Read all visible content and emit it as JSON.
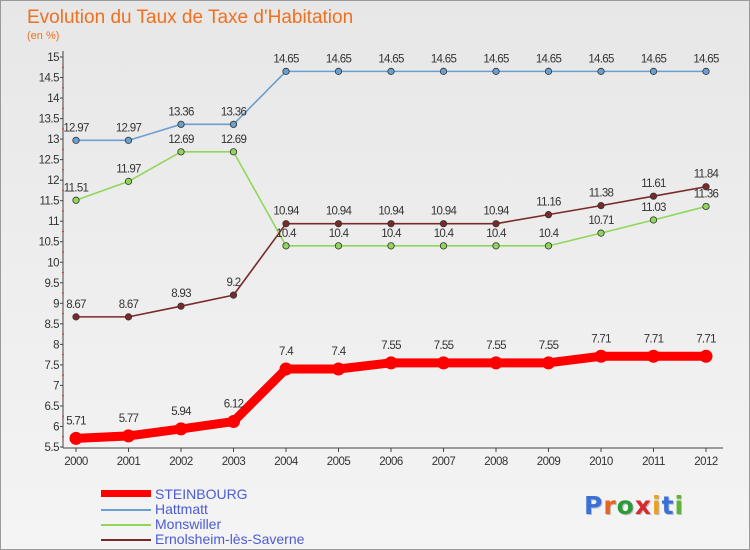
{
  "header": {
    "title": "Evolution du Taux de Taxe d'Habitation",
    "subtitle": "(en %)"
  },
  "chart_data": {
    "type": "line",
    "title": "Evolution du Taux de Taxe d'Habitation",
    "ylabel": "(en %)",
    "xlabel": "",
    "x": [
      2000,
      2001,
      2002,
      2003,
      2004,
      2005,
      2006,
      2007,
      2008,
      2009,
      2010,
      2011,
      2012
    ],
    "ylim": [
      5.5,
      15
    ],
    "ytick_step": 0.5,
    "grid": false,
    "legend_position": "bottom-left",
    "series": [
      {
        "name": "STEINBOURG",
        "color": "#ff0000",
        "values": [
          5.71,
          5.77,
          5.94,
          6.12,
          7.4,
          7.4,
          7.55,
          7.55,
          7.55,
          7.55,
          7.71,
          7.71,
          7.71
        ]
      },
      {
        "name": "Hattmatt",
        "color": "#6a9fd0",
        "values": [
          12.97,
          12.97,
          13.36,
          13.36,
          14.65,
          14.65,
          14.65,
          14.65,
          14.65,
          14.65,
          14.65,
          14.65,
          14.65
        ]
      },
      {
        "name": "Monswiller",
        "color": "#8fd65a",
        "values": [
          11.51,
          11.97,
          12.69,
          12.69,
          10.4,
          10.4,
          10.4,
          10.4,
          10.4,
          10.4,
          10.71,
          11.03,
          11.36
        ]
      },
      {
        "name": "Ernolsheim-lès-Saverne",
        "color": "#7a2a2a",
        "values": [
          8.67,
          8.67,
          8.93,
          9.2,
          10.94,
          10.94,
          10.94,
          10.94,
          10.94,
          11.16,
          11.38,
          11.61,
          11.84
        ]
      }
    ]
  },
  "logo": {
    "text": "Proxiti",
    "letters": [
      "P",
      "r",
      "o",
      "x",
      "i",
      "t",
      "i"
    ]
  }
}
